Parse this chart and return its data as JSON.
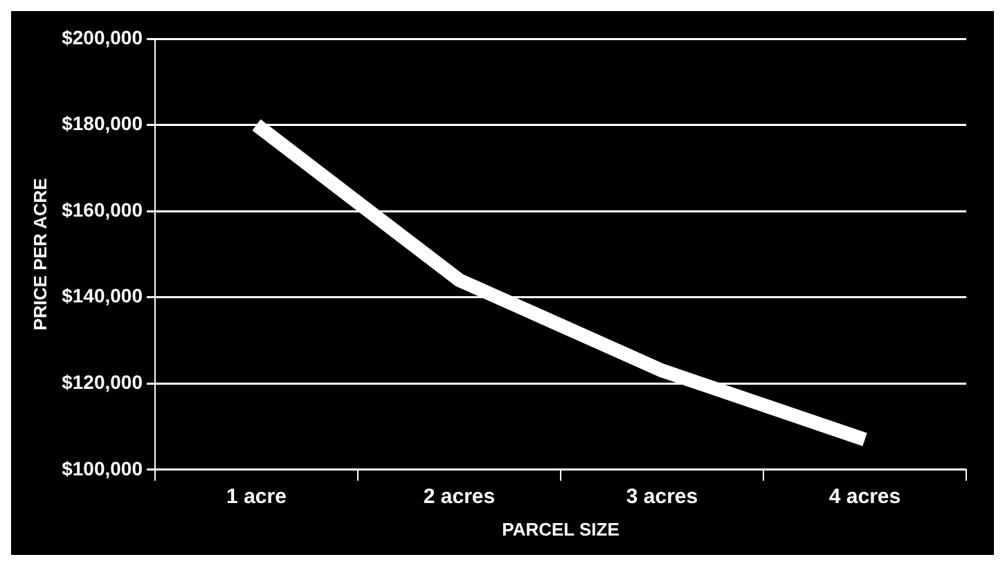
{
  "chart_data": {
    "type": "line",
    "xlabel": "PARCEL SIZE",
    "ylabel": "PRICE PER ACRE",
    "categories": [
      "1 acre",
      "2 acres",
      "3 acres",
      "4 acres"
    ],
    "series": [
      {
        "color": "#ffffff",
        "values": [
          180000,
          144000,
          123000,
          107000
        ]
      }
    ],
    "ylim": [
      100000,
      200000
    ],
    "yticks": [
      {
        "value": 100000,
        "label": "$100,000"
      },
      {
        "value": 120000,
        "label": "$120,000"
      },
      {
        "value": 140000,
        "label": "$140,000"
      },
      {
        "value": 160000,
        "label": "$160,000"
      },
      {
        "value": 180000,
        "label": "$180,000"
      },
      {
        "value": 200000,
        "label": "$200,000"
      }
    ],
    "grid": "y",
    "legend": false,
    "marker": "none",
    "line_style": "solid"
  }
}
